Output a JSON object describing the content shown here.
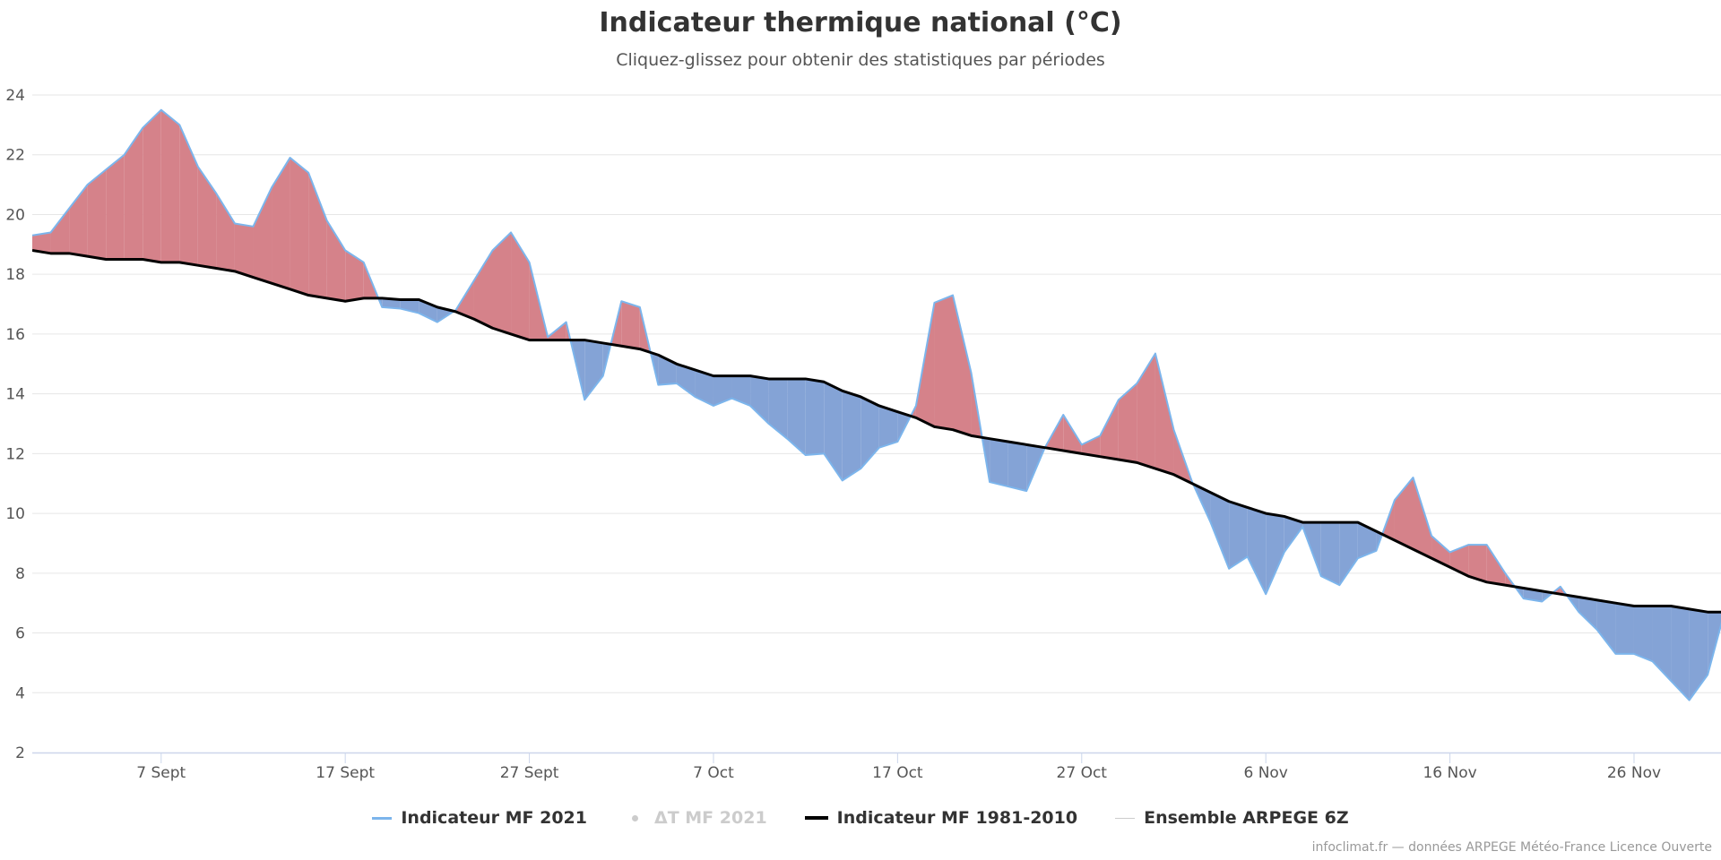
{
  "colors": {
    "mf2021_line": "#7cb5ec",
    "warm_fill": "#d5828a",
    "cold_fill": "#84a3d6",
    "normal_line": "#000000",
    "ensemble_line": "#cccccc",
    "grid": "#e6e6e6",
    "axis": "#ccd6eb"
  },
  "chart_data": {
    "type": "area",
    "title": "Indicateur thermique national (°C)",
    "subtitle": "Cliquez-glissez pour obtenir des statistiques par périodes",
    "xlabel": "",
    "ylabel": "",
    "ylim": [
      2,
      24
    ],
    "yticks": [
      2,
      4,
      6,
      8,
      10,
      12,
      14,
      16,
      18,
      20,
      22,
      24
    ],
    "x_start": "31 Aug",
    "x_tick_labels": [
      {
        "label": "7 Sept",
        "index": 7
      },
      {
        "label": "17 Sept",
        "index": 17
      },
      {
        "label": "27 Sept",
        "index": 27
      },
      {
        "label": "7 Oct",
        "index": 37
      },
      {
        "label": "17 Oct",
        "index": 47
      },
      {
        "label": "27 Oct",
        "index": 57
      },
      {
        "label": "6 Nov",
        "index": 67
      },
      {
        "label": "16 Nov",
        "index": 77
      },
      {
        "label": "26 Nov",
        "index": 87
      }
    ],
    "x": [
      "31 Aug",
      "1 Sept",
      "2 Sept",
      "3 Sept",
      "4 Sept",
      "5 Sept",
      "6 Sept",
      "7 Sept",
      "8 Sept",
      "9 Sept",
      "10 Sept",
      "11 Sept",
      "12 Sept",
      "13 Sept",
      "14 Sept",
      "15 Sept",
      "16 Sept",
      "17 Sept",
      "18 Sept",
      "19 Sept",
      "20 Sept",
      "21 Sept",
      "22 Sept",
      "23 Sept",
      "24 Sept",
      "25 Sept",
      "26 Sept",
      "27 Sept",
      "28 Sept",
      "29 Sept",
      "30 Sept",
      "1 Oct",
      "2 Oct",
      "3 Oct",
      "4 Oct",
      "5 Oct",
      "6 Oct",
      "7 Oct",
      "8 Oct",
      "9 Oct",
      "10 Oct",
      "11 Oct",
      "12 Oct",
      "13 Oct",
      "14 Oct",
      "15 Oct",
      "16 Oct",
      "17 Oct",
      "18 Oct",
      "19 Oct",
      "20 Oct",
      "21 Oct",
      "22 Oct",
      "23 Oct",
      "24 Oct",
      "25 Oct",
      "26 Oct",
      "27 Oct",
      "28 Oct",
      "29 Oct",
      "30 Oct",
      "31 Oct",
      "1 Nov",
      "2 Nov",
      "3 Nov",
      "4 Nov",
      "5 Nov",
      "6 Nov",
      "7 Nov",
      "8 Nov",
      "9 Nov",
      "10 Nov",
      "11 Nov",
      "12 Nov",
      "13 Nov",
      "14 Nov",
      "15 Nov",
      "16 Nov",
      "17 Nov",
      "18 Nov",
      "19 Nov",
      "20 Nov",
      "21 Nov",
      "22 Nov",
      "23 Nov",
      "24 Nov",
      "25 Nov",
      "26 Nov",
      "27 Nov",
      "28 Nov",
      "29 Nov",
      "30 Nov",
      "1 Dec"
    ],
    "series": [
      {
        "name": "Indicateur MF 2021",
        "values": [
          19.3,
          19.4,
          20.2,
          21.0,
          21.5,
          22.0,
          22.9,
          23.5,
          23.0,
          21.6,
          20.7,
          19.7,
          19.6,
          20.9,
          21.9,
          21.4,
          19.8,
          18.8,
          18.4,
          16.9,
          16.85,
          16.7,
          16.4,
          16.8,
          17.8,
          18.8,
          19.4,
          18.4,
          15.9,
          16.4,
          13.8,
          14.6,
          17.1,
          16.9,
          14.3,
          14.35,
          13.9,
          13.6,
          13.85,
          13.6,
          13.0,
          12.5,
          11.95,
          12.0,
          11.1,
          11.5,
          12.2,
          12.4,
          13.6,
          17.05,
          17.3,
          14.7,
          11.05,
          10.9,
          10.75,
          12.2,
          13.3,
          12.3,
          12.6,
          13.8,
          14.35,
          15.35,
          12.8,
          11.05,
          9.7,
          8.15,
          8.55,
          7.3,
          8.7,
          9.55,
          7.9,
          7.6,
          8.5,
          8.75,
          10.45,
          11.2,
          9.25,
          8.7,
          8.95,
          8.95,
          8.0,
          7.15,
          7.05,
          7.55,
          6.7,
          6.1,
          5.3,
          5.3,
          5.05,
          4.4,
          3.75,
          4.6,
          6.9
        ]
      },
      {
        "name": "Indicateur MF 1981-2010",
        "values": [
          18.8,
          18.7,
          18.7,
          18.6,
          18.5,
          18.5,
          18.5,
          18.4,
          18.4,
          18.3,
          18.2,
          18.1,
          17.9,
          17.7,
          17.5,
          17.3,
          17.2,
          17.1,
          17.2,
          17.2,
          17.15,
          17.15,
          16.9,
          16.75,
          16.5,
          16.2,
          16.0,
          15.8,
          15.8,
          15.8,
          15.8,
          15.7,
          15.6,
          15.5,
          15.3,
          15.0,
          14.8,
          14.6,
          14.6,
          14.6,
          14.5,
          14.5,
          14.5,
          14.4,
          14.1,
          13.9,
          13.6,
          13.4,
          13.2,
          12.9,
          12.8,
          12.6,
          12.5,
          12.4,
          12.3,
          12.2,
          12.1,
          12.0,
          11.9,
          11.8,
          11.7,
          11.5,
          11.3,
          11.0,
          10.7,
          10.4,
          10.2,
          10.0,
          9.9,
          9.7,
          9.7,
          9.7,
          9.7,
          9.4,
          9.1,
          8.8,
          8.5,
          8.2,
          7.9,
          7.7,
          7.6,
          7.5,
          7.4,
          7.3,
          7.2,
          7.1,
          7.0,
          6.9,
          6.9,
          6.9,
          6.8,
          6.7,
          6.7
        ]
      }
    ],
    "legend": {
      "placement": "bottom-center",
      "items": [
        {
          "name": "Indicateur MF 2021",
          "symbol": "line",
          "visible": true
        },
        {
          "name": "ΔT MF 2021",
          "symbol": "dot",
          "visible": false
        },
        {
          "name": "Indicateur MF 1981-2010",
          "symbol": "thick-line",
          "visible": true
        },
        {
          "name": "Ensemble ARPEGE 6Z",
          "symbol": "thin-line",
          "visible": true
        }
      ]
    },
    "grid": true,
    "fill_between": {
      "above_normal": "warm",
      "below_normal": "cold"
    }
  },
  "credit": "infoclimat.fr — données ARPEGE Météo-France Licence Ouverte"
}
